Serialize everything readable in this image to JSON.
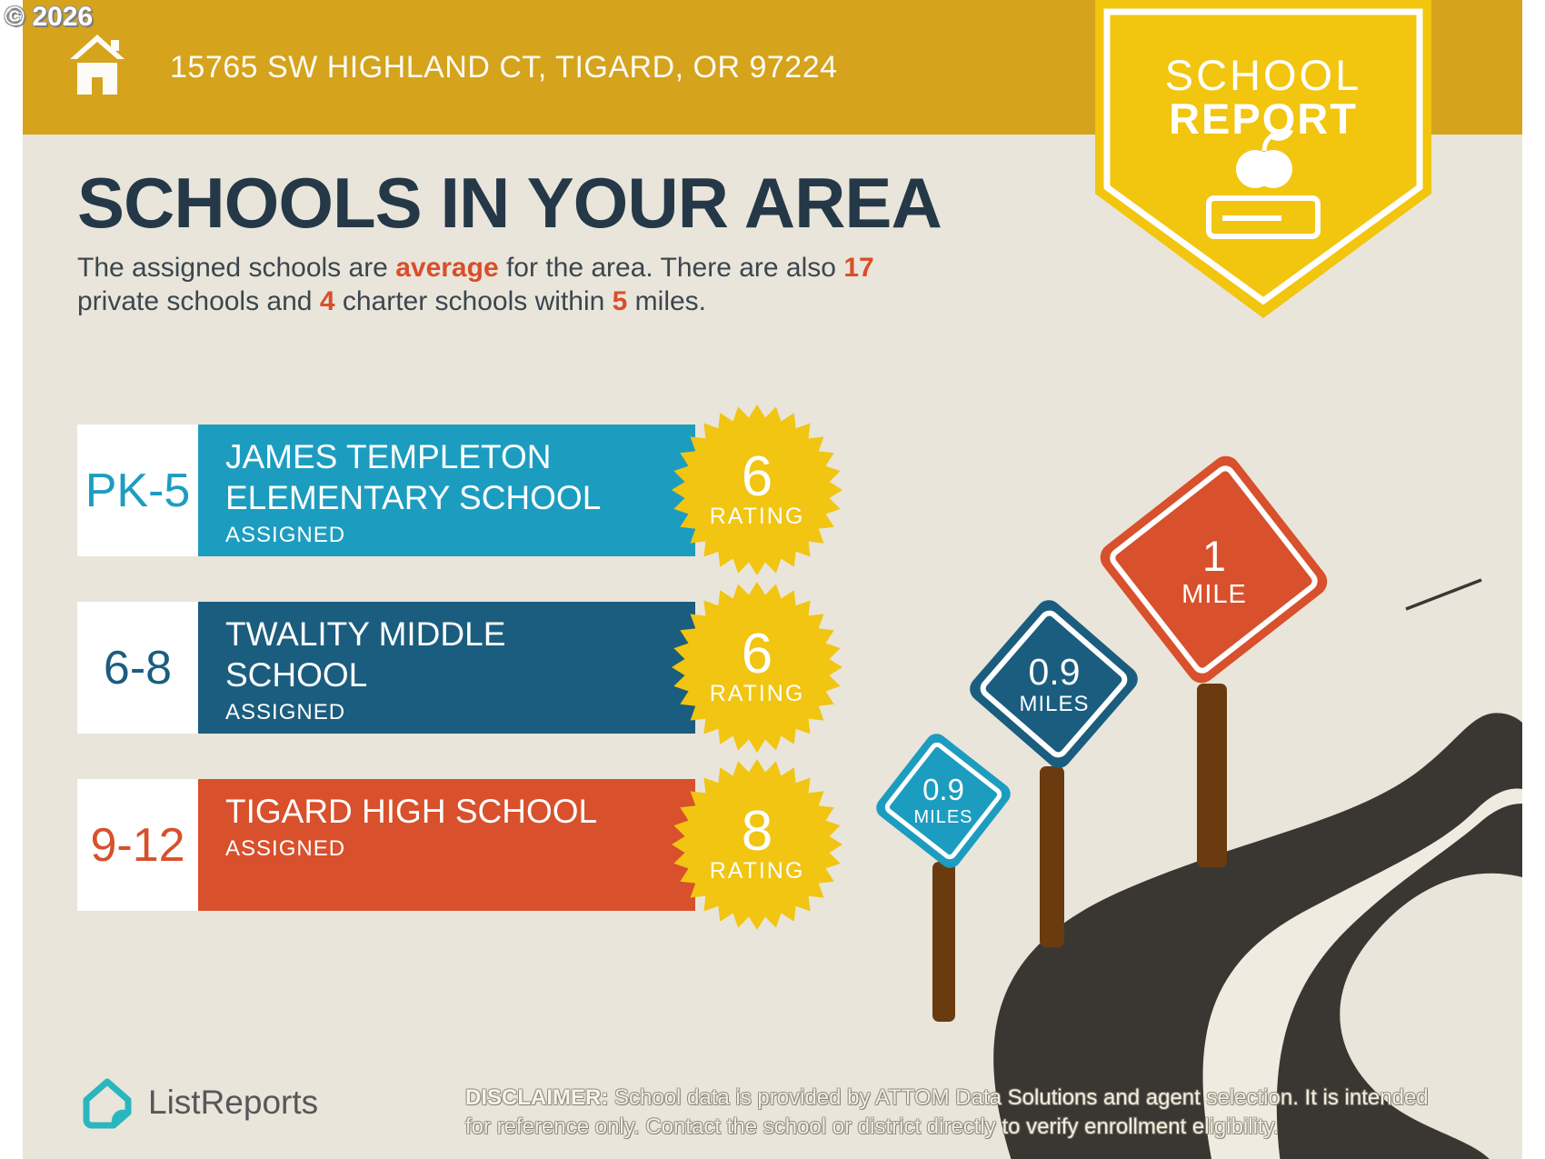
{
  "copyright": "© 2026",
  "header": {
    "address": "15765 SW HIGHLAND CT, TIGARD, OR 97224",
    "bar_color": "#D5A31C",
    "home_icon": "house"
  },
  "badge": {
    "line1": "SCHOOL",
    "line2": "REPORT",
    "icon": "apple-on-book",
    "color": "#F2C50F"
  },
  "title": "SCHOOLS IN YOUR AREA",
  "intro": {
    "segments": [
      {
        "text": "The assigned schools are "
      },
      {
        "text": "average",
        "highlight": true
      },
      {
        "text": " for the area. There are also "
      },
      {
        "text": "17",
        "highlight": true
      },
      {
        "text": "private schools and ",
        "newline": true
      },
      {
        "text": "4",
        "highlight": true
      },
      {
        "text": " charter schools within "
      },
      {
        "text": "5",
        "highlight": true
      },
      {
        "text": " miles."
      }
    ]
  },
  "schools": [
    {
      "grades": "PK-5",
      "name_lines": [
        "JAMES TEMPLETON",
        "ELEMENTARY SCHOOL"
      ],
      "status": "ASSIGNED",
      "rating": "6",
      "rating_label": "RATING",
      "color": "#1C9DC0"
    },
    {
      "grades": "6-8",
      "name_lines": [
        "TWALITY MIDDLE",
        "SCHOOL"
      ],
      "status": "ASSIGNED",
      "rating": "6",
      "rating_label": "RATING",
      "color": "#1A5D7F"
    },
    {
      "grades": "9-12",
      "name_lines": [
        "TIGARD HIGH SCHOOL"
      ],
      "status": "ASSIGNED",
      "rating": "8",
      "rating_label": "RATING",
      "color": "#D8502C"
    }
  ],
  "rating_star_color": "#F1C511",
  "signs": [
    {
      "distance": "0.9",
      "unit": "MILES",
      "color": "#1C9DC0"
    },
    {
      "distance": "0.9",
      "unit": "MILES",
      "color": "#1A5D7F"
    },
    {
      "distance": "1",
      "unit": "MILE",
      "color": "#D8502C"
    }
  ],
  "road_color": "#3A3733",
  "background_color": "#E9E5DA",
  "footer": {
    "brand": "ListReports",
    "brand_icon": "folded-house",
    "brand_icon_color": "#2AB6BE",
    "disclaimer_label": "DISCLAIMER:",
    "disclaimer_lines": [
      " School data is provided by ATTOM Data Solutions and agent selection. It is intended",
      "for reference only. Contact the school or district directly to verify enrollment eligibility."
    ]
  }
}
